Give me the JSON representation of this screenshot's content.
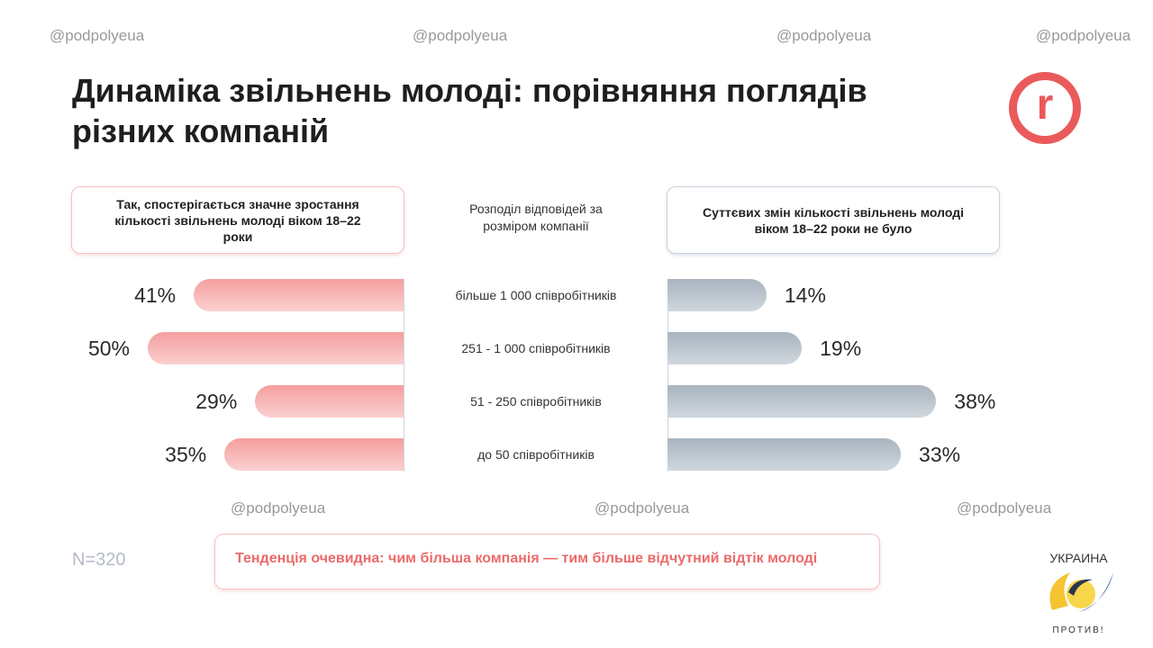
{
  "title": "Динаміка звільнень молоді: порівняння поглядів різних компаній",
  "watermark": "@podpolyeua",
  "brand_logo_letter": "r",
  "chart_data": {
    "type": "bar",
    "orientation": "horizontal-diverging",
    "title": "Динаміка звільнень молоді: порівняння поглядів різних компаній",
    "category_header": "Розподіл відповідей за розміром компанії",
    "categories": [
      "більше 1 000 співробітників",
      "251 - 1 000 співробітників",
      "51 - 250 співробітників",
      "до 50 співробітників"
    ],
    "series": [
      {
        "name": "Так, спостерігається значне зростання кількості звільнень молоді віком 18–22 роки",
        "values": [
          41,
          50,
          29,
          35
        ],
        "labels": [
          "41%",
          "50%",
          "29%",
          "35%"
        ],
        "color": "#f59e9e",
        "side": "left"
      },
      {
        "name": "Суттєвих змін кількості звільнень молоді віком 18–22 роки не було",
        "values": [
          14,
          19,
          38,
          33
        ],
        "labels": [
          "14%",
          "19%",
          "38%",
          "33%"
        ],
        "color": "#a9b4bf",
        "side": "right"
      }
    ],
    "unit": "%"
  },
  "sample": "N=320",
  "conclusion": "Тенденція очевидна: чим більша компанія — тим більше відчутний відтік молоді",
  "footer_logo": {
    "top": "УКРАИНА",
    "bottom": "ПРОТИВ!"
  }
}
